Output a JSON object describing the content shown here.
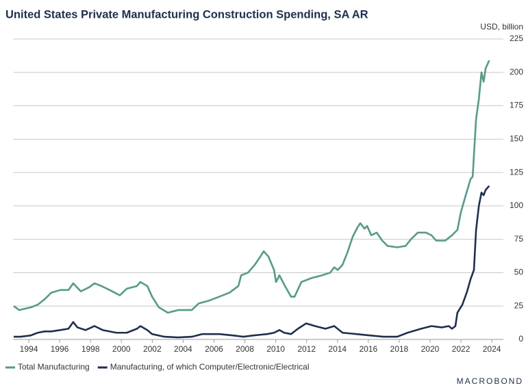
{
  "chart_data": {
    "type": "line",
    "title": "United States Private Manufacturing Construction Spending, SA AR",
    "y_label": "USD, billion",
    "branding": "MACROBOND",
    "xlim": [
      1993,
      2024.75
    ],
    "xticks": [
      1994,
      1996,
      1998,
      2000,
      2002,
      2004,
      2006,
      2008,
      2010,
      2012,
      2014,
      2016,
      2018,
      2020,
      2022,
      2024
    ],
    "ylim": [
      0,
      225
    ],
    "yticks": [
      0,
      25,
      50,
      75,
      100,
      125,
      150,
      175,
      200,
      225
    ],
    "grid": true,
    "legend": "bottom",
    "series": [
      {
        "name": "Total Manufacturing",
        "color": "#4f9e86",
        "x": [
          1993.02,
          1993.38,
          1994.13,
          1994.58,
          1995.02,
          1995.46,
          1996.04,
          1996.57,
          1996.88,
          1997.37,
          1997.9,
          1998.26,
          1998.7,
          1999.24,
          1999.9,
          2000.35,
          2001.01,
          2001.23,
          2001.68,
          2001.99,
          2002.43,
          2003.01,
          2003.68,
          2004.56,
          2005.01,
          2005.67,
          2006.34,
          2007.0,
          2007.58,
          2007.76,
          2008.2,
          2008.65,
          2009.0,
          2009.22,
          2009.53,
          2009.89,
          2010.02,
          2010.24,
          2010.55,
          2010.99,
          2011.22,
          2011.66,
          2012.33,
          2012.99,
          2013.53,
          2013.79,
          2014.02,
          2014.33,
          2014.64,
          2014.99,
          2015.3,
          2015.48,
          2015.75,
          2015.92,
          2016.19,
          2016.54,
          2016.9,
          2017.25,
          2017.87,
          2018.41,
          2018.76,
          2019.2,
          2019.74,
          2020.09,
          2020.4,
          2020.98,
          2021.42,
          2021.77,
          2021.99,
          2022.31,
          2022.62,
          2022.76,
          2022.98,
          2023.16,
          2023.33,
          2023.47,
          2023.6,
          2023.83
        ],
        "values": [
          25,
          22,
          24,
          26,
          30,
          35,
          37,
          37,
          42,
          36,
          39,
          42,
          40,
          37,
          33,
          38,
          40,
          43,
          40,
          32,
          24,
          20,
          22,
          22,
          27,
          29,
          32,
          35,
          40,
          48,
          50,
          56,
          62,
          66,
          62,
          52,
          43,
          48,
          41,
          32,
          32,
          43,
          46,
          48,
          50,
          54,
          52,
          56,
          65,
          77,
          84,
          87,
          83,
          85,
          78,
          80,
          74,
          70,
          69,
          70,
          75,
          80,
          80,
          78,
          74,
          74,
          78,
          82,
          95,
          108,
          120,
          122,
          165,
          180,
          200,
          193,
          203,
          209
        ]
      },
      {
        "name": "Manufacturing, of which Computer/Electronic/Electrical",
        "color": "#1b2f52",
        "x": [
          1993.02,
          1993.47,
          1994.13,
          1994.58,
          1995.02,
          1995.46,
          1996.04,
          1996.57,
          1996.88,
          1997.15,
          1997.68,
          1998.26,
          1998.79,
          1999.68,
          2000.35,
          2001.01,
          2001.23,
          2001.68,
          2001.99,
          2002.79,
          2003.68,
          2004.56,
          2005.23,
          2006.34,
          2007.23,
          2007.9,
          2008.56,
          2009.45,
          2009.89,
          2010.24,
          2010.55,
          2010.99,
          2011.44,
          2011.97,
          2012.55,
          2013.22,
          2013.79,
          2014.33,
          2015.22,
          2016.1,
          2016.99,
          2017.87,
          2018.54,
          2019.42,
          2020.09,
          2020.76,
          2021.21,
          2021.42,
          2021.64,
          2021.77,
          2022.09,
          2022.4,
          2022.62,
          2022.84,
          2022.98,
          2023.16,
          2023.33,
          2023.47,
          2023.6,
          2023.83
        ],
        "values": [
          2,
          2,
          3,
          5,
          6,
          6,
          7,
          8,
          13,
          9,
          7,
          10,
          7,
          5,
          5,
          8,
          10,
          7,
          4,
          2,
          1.5,
          2,
          4,
          4,
          3,
          2,
          3,
          4,
          5,
          7,
          5,
          4,
          8,
          12,
          10,
          8,
          10,
          5,
          4,
          3,
          2,
          2,
          5,
          8,
          10,
          9,
          10,
          8,
          10,
          20,
          26,
          36,
          45,
          52,
          82,
          100,
          110,
          108,
          112,
          115
        ]
      }
    ]
  }
}
